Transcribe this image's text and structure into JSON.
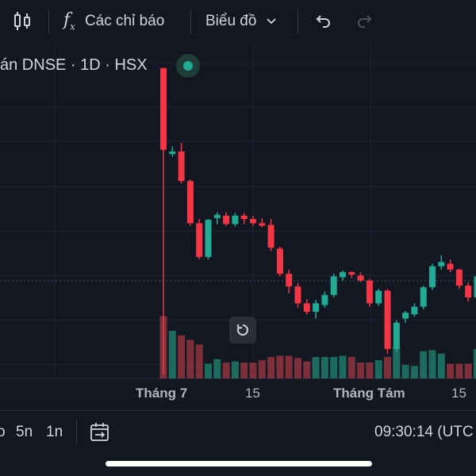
{
  "toolbar": {
    "indicators_label": "Các chỉ báo",
    "chart_type_label": "Biểu đồ",
    "icons": [
      "candles-icon",
      "function-icon",
      "chevron-down-icon",
      "undo-icon",
      "redo-icon"
    ]
  },
  "chart": {
    "title": "án DNSE · 1D · HSX",
    "status": "market-open",
    "colors": {
      "up": "#22ab94",
      "down": "#f23645",
      "up_vol": "#1d6b5f",
      "down_vol": "#7d2f3a",
      "background": "#131722",
      "grid": "#1f2330"
    }
  },
  "chart_data": {
    "type": "candlestick",
    "x_tick_labels": [
      "Tháng 7",
      "15",
      "Tháng Tám",
      "15"
    ],
    "bold_tick_labels": [
      "Tháng 7",
      "Tháng Tám"
    ],
    "ohlc": [
      [
        58.8,
        58.8,
        49.0,
        49.1
      ],
      [
        48.6,
        49.5,
        48.3,
        48.9
      ],
      [
        48.9,
        49.9,
        45.1,
        45.4
      ],
      [
        45.4,
        45.6,
        40.1,
        40.4
      ],
      [
        40.4,
        40.9,
        36.1,
        36.4
      ],
      [
        36.4,
        40.9,
        36.1,
        40.8
      ],
      [
        41.0,
        41.7,
        40.3,
        41.4
      ],
      [
        41.3,
        41.7,
        40.1,
        40.3
      ],
      [
        40.3,
        41.6,
        40.0,
        41.3
      ],
      [
        41.3,
        41.6,
        40.3,
        40.9
      ],
      [
        40.9,
        41.3,
        40.1,
        40.4
      ],
      [
        40.4,
        41.0,
        39.9,
        40.1
      ],
      [
        40.2,
        40.9,
        37.1,
        37.5
      ],
      [
        37.4,
        37.6,
        34.1,
        34.4
      ],
      [
        34.4,
        34.9,
        32.1,
        32.9
      ],
      [
        32.9,
        33.3,
        30.4,
        30.9
      ],
      [
        30.9,
        31.4,
        29.6,
        29.9
      ],
      [
        29.9,
        31.3,
        29.1,
        30.9
      ],
      [
        30.7,
        32.3,
        30.4,
        31.9
      ],
      [
        31.9,
        34.4,
        31.6,
        34.1
      ],
      [
        34.0,
        34.8,
        33.6,
        34.6
      ],
      [
        34.6,
        34.7,
        33.9,
        34.3
      ],
      [
        34.2,
        34.6,
        33.4,
        33.6
      ],
      [
        33.6,
        33.8,
        30.5,
        30.9
      ],
      [
        30.9,
        32.6,
        30.6,
        32.4
      ],
      [
        32.4,
        32.6,
        24.9,
        25.5
      ],
      [
        25.5,
        28.9,
        25.1,
        28.6
      ],
      [
        29.1,
        30.0,
        28.6,
        29.8
      ],
      [
        29.6,
        30.9,
        29.3,
        30.5
      ],
      [
        30.5,
        33.0,
        30.2,
        32.8
      ],
      [
        32.8,
        35.6,
        32.5,
        35.3
      ],
      [
        35.3,
        36.6,
        34.9,
        35.8
      ],
      [
        35.6,
        36.1,
        34.6,
        34.9
      ],
      [
        34.9,
        35.0,
        32.6,
        33.0
      ],
      [
        33.0,
        33.4,
        31.1,
        31.6
      ],
      [
        31.6,
        34.3,
        31.2,
        34.1
      ]
    ],
    "volume": [
      5.5,
      4.2,
      3.8,
      3.4,
      3.0,
      1.3,
      1.7,
      1.4,
      1.5,
      1.4,
      1.4,
      1.6,
      1.9,
      2.0,
      2.0,
      1.8,
      1.5,
      1.9,
      1.9,
      1.9,
      2.0,
      1.9,
      1.4,
      1.4,
      1.6,
      1.9,
      2.8,
      1.2,
      1.1,
      2.4,
      2.5,
      2.2,
      1.3,
      1.3,
      1.3,
      2.6
    ],
    "price_range": [
      22.0,
      61.5
    ],
    "volume_max": 8.4,
    "grid": true
  },
  "bottombar": {
    "range_buttons": [
      "o",
      "5n",
      "1n"
    ],
    "time": "09:30:14 (UTC"
  }
}
